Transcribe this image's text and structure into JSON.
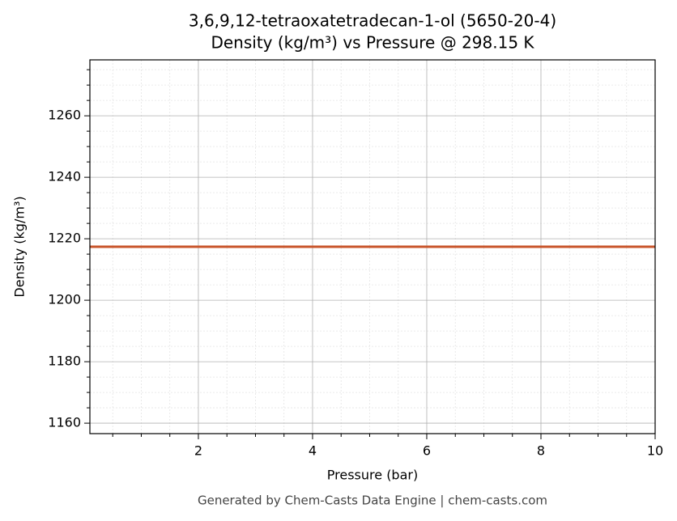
{
  "chart_data": {
    "type": "line",
    "title": "3,6,9,12-tetraoxatetradecan-1-ol (5650-20-4)",
    "subtitle": "Density (kg/m³) vs Pressure @ 298.15 K",
    "x_label": "Pressure (bar)",
    "y_label": "Density (kg/m³)",
    "footer": "Generated by Chem-Casts Data Engine | chem-casts.com",
    "x": [
      0.1,
      10
    ],
    "series": [
      {
        "name": "Density",
        "color": "#c8552b",
        "values": [
          1217.4,
          1217.4
        ]
      }
    ],
    "xlim": [
      0.1,
      10
    ],
    "ylim": [
      1156.6,
      1278.2
    ],
    "xticks": [
      2,
      4,
      6,
      8,
      10
    ],
    "yticks": [
      1160,
      1180,
      1200,
      1220,
      1240,
      1260
    ],
    "xminorticks": [
      0.5,
      1,
      1.5,
      2.5,
      3,
      3.5,
      4.5,
      5,
      5.5,
      6.5,
      7,
      7.5,
      8.5,
      9,
      9.5
    ],
    "yminorticks": [
      1165,
      1170,
      1175,
      1185,
      1190,
      1195,
      1205,
      1210,
      1215,
      1225,
      1230,
      1235,
      1245,
      1250,
      1255,
      1265,
      1270,
      1275
    ],
    "grid": true,
    "legend": false
  }
}
